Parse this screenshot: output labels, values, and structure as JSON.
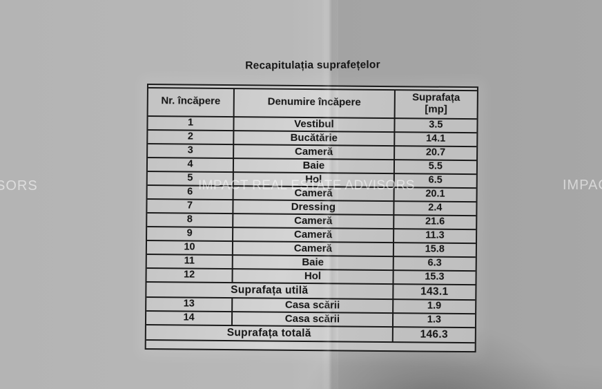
{
  "document": {
    "title": "Recapitulația suprafețelor"
  },
  "watermarks": {
    "left": "SORS",
    "center": "IMPACT REAL ESTATE ADVISORS",
    "right": "IMPAC"
  },
  "colors": {
    "paper": "#b4b4b4",
    "table_paper": "#cecece",
    "line": "#1a1a1a",
    "text": "#141414",
    "watermark": "rgba(255,255,255,0.55)"
  },
  "table": {
    "headers": {
      "nr": "Nr. încăpere",
      "name": "Denumire încăpere",
      "area_line1": "Suprafața",
      "area_line2": "[mp]"
    },
    "rows": [
      {
        "type": "room",
        "nr": "1",
        "name": "Vestibul",
        "area": "3.5"
      },
      {
        "type": "room",
        "nr": "2",
        "name": "Bucătărie",
        "area": "14.1"
      },
      {
        "type": "room",
        "nr": "3",
        "name": "Cameră",
        "area": "20.7"
      },
      {
        "type": "room",
        "nr": "4",
        "name": "Baie",
        "area": "5.5"
      },
      {
        "type": "room",
        "nr": "5",
        "name": "Hol",
        "area": "6.5"
      },
      {
        "type": "room",
        "nr": "6",
        "name": "Cameră",
        "area": "20.1"
      },
      {
        "type": "room",
        "nr": "7",
        "name": "Dressing",
        "area": "2.4"
      },
      {
        "type": "room",
        "nr": "8",
        "name": "Cameră",
        "area": "21.6"
      },
      {
        "type": "room",
        "nr": "9",
        "name": "Cameră",
        "area": "11.3"
      },
      {
        "type": "room",
        "nr": "10",
        "name": "Cameră",
        "area": "15.8"
      },
      {
        "type": "room",
        "nr": "11",
        "name": "Baie",
        "area": "6.3"
      },
      {
        "type": "room",
        "nr": "12",
        "name": "Hol",
        "area": "15.3"
      },
      {
        "type": "span",
        "name": "Suprafața utilă",
        "area": "143.1"
      },
      {
        "type": "room",
        "nr": "13",
        "name": "Casa scării",
        "area": "1.9"
      },
      {
        "type": "room",
        "nr": "14",
        "name": "Casa scării",
        "area": "1.3"
      },
      {
        "type": "span",
        "name": "Suprafața totală",
        "area": "146.3"
      }
    ]
  }
}
